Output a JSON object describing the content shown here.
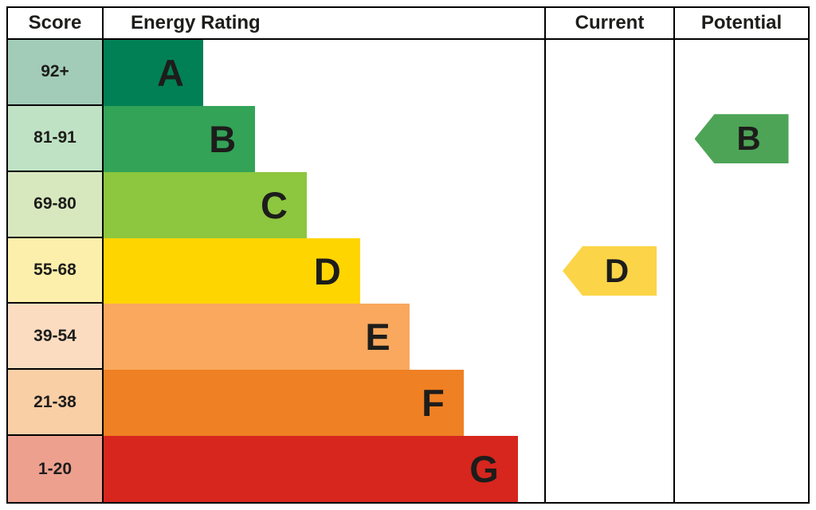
{
  "header": {
    "score": "Score",
    "energy_rating": "Energy Rating",
    "current": "Current",
    "potential": "Potential"
  },
  "chart_data": {
    "type": "bar",
    "title": "Energy Rating",
    "description": "EPC energy efficiency rating chart with bands A-G, current and potential rating arrows",
    "bands": [
      {
        "letter": "A",
        "score": "92+",
        "color": "#008054",
        "score_bg": "#a2ccb7",
        "bar_width_pct": 22.6
      },
      {
        "letter": "B",
        "score": "81-91",
        "color": "#33a357",
        "score_bg": "#bfe2c4",
        "bar_width_pct": 34.4
      },
      {
        "letter": "C",
        "score": "69-80",
        "color": "#8dc63f",
        "score_bg": "#d8e8be",
        "bar_width_pct": 46.1
      },
      {
        "letter": "D",
        "score": "55-68",
        "color": "#ffd500",
        "score_bg": "#fcefac",
        "bar_width_pct": 58.2
      },
      {
        "letter": "E",
        "score": "39-54",
        "color": "#f9a85e",
        "score_bg": "#fbdcc1",
        "bar_width_pct": 69.4
      },
      {
        "letter": "F",
        "score": "21-38",
        "color": "#ef8023",
        "score_bg": "#f9cfa6",
        "bar_width_pct": 81.7
      },
      {
        "letter": "G",
        "score": "1-20",
        "color": "#d6261e",
        "score_bg": "#eda08e",
        "bar_width_pct": 94.0
      }
    ],
    "current": {
      "band": "D",
      "label": "D",
      "color": "#fbd448"
    },
    "potential": {
      "band": "B",
      "label": "B",
      "color": "#4da456"
    }
  }
}
